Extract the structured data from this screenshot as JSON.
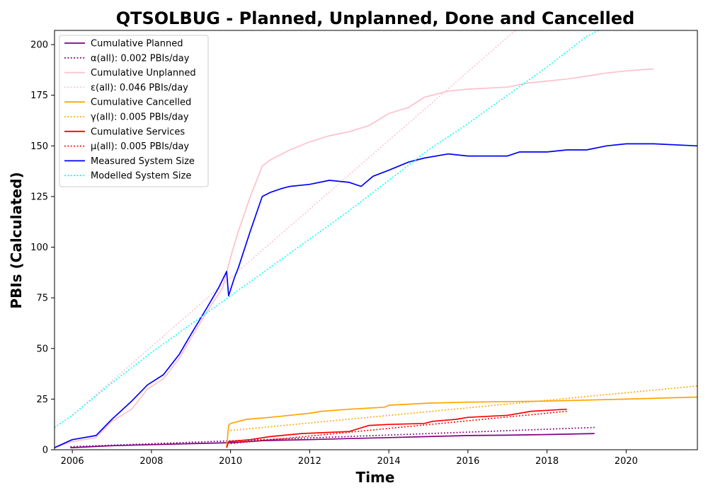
{
  "chart_data": {
    "type": "line",
    "title": "QTSOLBUG - Planned, Unplanned, Done  and Cancelled",
    "xlabel": "Time",
    "ylabel": "PBIs (Calculated)",
    "xlim": [
      2005.55,
      2021.8
    ],
    "ylim": [
      0,
      207
    ],
    "x_ticks": [
      2006,
      2008,
      2010,
      2012,
      2014,
      2016,
      2018,
      2020
    ],
    "y_ticks": [
      0,
      25,
      50,
      75,
      100,
      125,
      150,
      175,
      200
    ],
    "grid": false,
    "legend_position": "upper-left",
    "series": [
      {
        "name": "Cumulative Planned",
        "color": "#800080",
        "style": "solid",
        "points": [
          [
            2005.95,
            1
          ],
          [
            2007,
            2
          ],
          [
            2008,
            2.5
          ],
          [
            2009,
            3
          ],
          [
            2010,
            3.5
          ],
          [
            2010.8,
            4.5
          ],
          [
            2012,
            5
          ],
          [
            2013,
            5.5
          ],
          [
            2014,
            6
          ],
          [
            2015,
            6.5
          ],
          [
            2016,
            7
          ],
          [
            2017,
            7.2
          ],
          [
            2018,
            7.5
          ],
          [
            2019.2,
            8
          ]
        ]
      },
      {
        "name": "α(all): 0.002 PBIs/day",
        "color": "#800080",
        "style": "dotted",
        "points": [
          [
            2005.95,
            1.5
          ],
          [
            2019.2,
            11
          ]
        ]
      },
      {
        "name": "Cumulative Unplanned",
        "color": "#ffc0cb",
        "style": "solid",
        "points": [
          [
            2005.55,
            1
          ],
          [
            2006,
            4
          ],
          [
            2006.6,
            6
          ],
          [
            2007,
            14
          ],
          [
            2007.5,
            20
          ],
          [
            2007.9,
            30
          ],
          [
            2008.3,
            35
          ],
          [
            2008.7,
            45
          ],
          [
            2009,
            55
          ],
          [
            2009.4,
            68
          ],
          [
            2009.8,
            80
          ],
          [
            2010,
            95
          ],
          [
            2010.2,
            108
          ],
          [
            2010.5,
            125
          ],
          [
            2010.8,
            140
          ],
          [
            2011,
            143
          ],
          [
            2011.5,
            148
          ],
          [
            2012,
            152
          ],
          [
            2012.5,
            155
          ],
          [
            2013,
            157
          ],
          [
            2013.5,
            160
          ],
          [
            2014,
            166
          ],
          [
            2014.5,
            169
          ],
          [
            2014.9,
            174
          ],
          [
            2015.5,
            177
          ],
          [
            2016,
            178
          ],
          [
            2017,
            179
          ],
          [
            2017.5,
            181
          ],
          [
            2018,
            182
          ],
          [
            2018.5,
            183
          ],
          [
            2019.2,
            185
          ],
          [
            2019.5,
            186
          ],
          [
            2020,
            187
          ],
          [
            2020.7,
            188
          ]
        ]
      },
      {
        "name": "ε(all): 0.046 PBIs/day",
        "color": "#ffc0cb",
        "style": "dotted",
        "points": [
          [
            2006,
            17
          ],
          [
            2017.2,
            207
          ]
        ]
      },
      {
        "name": "Cumulative Cancelled",
        "color": "#ffa500",
        "style": "solid",
        "points": [
          [
            2009.9,
            1
          ],
          [
            2009.95,
            12
          ],
          [
            2010,
            13
          ],
          [
            2010.4,
            15
          ],
          [
            2011,
            16
          ],
          [
            2011.5,
            17
          ],
          [
            2012,
            18
          ],
          [
            2012.3,
            19
          ],
          [
            2013,
            20
          ],
          [
            2013.9,
            21
          ],
          [
            2014,
            22
          ],
          [
            2015,
            23
          ],
          [
            2016,
            23.5
          ],
          [
            2018,
            24
          ],
          [
            2020,
            25
          ],
          [
            2021.8,
            26
          ]
        ]
      },
      {
        "name": "γ(all): 0.005 PBIs/day",
        "color": "#ffa500",
        "style": "dotted",
        "points": [
          [
            2010,
            9.5
          ],
          [
            2021.8,
            31.5
          ]
        ]
      },
      {
        "name": "Cumulative Services",
        "color": "#ff0000",
        "style": "solid",
        "points": [
          [
            2009.9,
            1
          ],
          [
            2009.95,
            4
          ],
          [
            2010.5,
            5
          ],
          [
            2011,
            6.5
          ],
          [
            2011.8,
            8
          ],
          [
            2013,
            9
          ],
          [
            2013.5,
            12
          ],
          [
            2014,
            12.5
          ],
          [
            2014.9,
            13
          ],
          [
            2015.1,
            14
          ],
          [
            2015.7,
            15
          ],
          [
            2016,
            16
          ],
          [
            2017,
            17
          ],
          [
            2017.6,
            19
          ],
          [
            2018.5,
            20
          ]
        ]
      },
      {
        "name": "μ(all): 0.005 PBIs/day",
        "color": "#ff0000",
        "style": "dotted",
        "points": [
          [
            2010,
            3
          ],
          [
            2018.5,
            19
          ]
        ]
      },
      {
        "name": "Measured System Size",
        "color": "#0000ff",
        "style": "solid",
        "points": [
          [
            2005.55,
            1
          ],
          [
            2006,
            5
          ],
          [
            2006.6,
            7
          ],
          [
            2007,
            15
          ],
          [
            2007.5,
            24
          ],
          [
            2007.9,
            32
          ],
          [
            2008.3,
            37
          ],
          [
            2008.7,
            47
          ],
          [
            2009,
            57
          ],
          [
            2009.4,
            70
          ],
          [
            2009.7,
            80
          ],
          [
            2009.9,
            88
          ],
          [
            2009.95,
            76
          ],
          [
            2010.1,
            85
          ],
          [
            2010.2,
            90
          ],
          [
            2010.5,
            108
          ],
          [
            2010.8,
            125
          ],
          [
            2011,
            127
          ],
          [
            2011.3,
            129
          ],
          [
            2011.5,
            130
          ],
          [
            2012,
            131
          ],
          [
            2012.5,
            133
          ],
          [
            2013,
            132
          ],
          [
            2013.3,
            130
          ],
          [
            2013.6,
            135
          ],
          [
            2014,
            138
          ],
          [
            2014.5,
            142
          ],
          [
            2014.9,
            144
          ],
          [
            2015.5,
            146
          ],
          [
            2016,
            145
          ],
          [
            2017,
            145
          ],
          [
            2017.3,
            147
          ],
          [
            2018,
            147
          ],
          [
            2018.5,
            148
          ],
          [
            2019,
            148
          ],
          [
            2019.5,
            150
          ],
          [
            2020,
            151
          ],
          [
            2020.7,
            151
          ],
          [
            2021.8,
            150
          ]
        ]
      },
      {
        "name": "Modelled System Size",
        "color": "#00ffff",
        "style": "dotted",
        "points": [
          [
            2005.55,
            11
          ],
          [
            2006,
            17
          ],
          [
            2007,
            33
          ],
          [
            2008,
            48
          ],
          [
            2009,
            62
          ],
          [
            2010,
            76
          ],
          [
            2011,
            90
          ],
          [
            2012,
            104
          ],
          [
            2013,
            118
          ],
          [
            2014,
            133
          ],
          [
            2015,
            148
          ],
          [
            2016,
            161
          ],
          [
            2017,
            175
          ],
          [
            2018,
            189
          ],
          [
            2019,
            204
          ],
          [
            2019.3,
            207
          ]
        ]
      }
    ]
  }
}
